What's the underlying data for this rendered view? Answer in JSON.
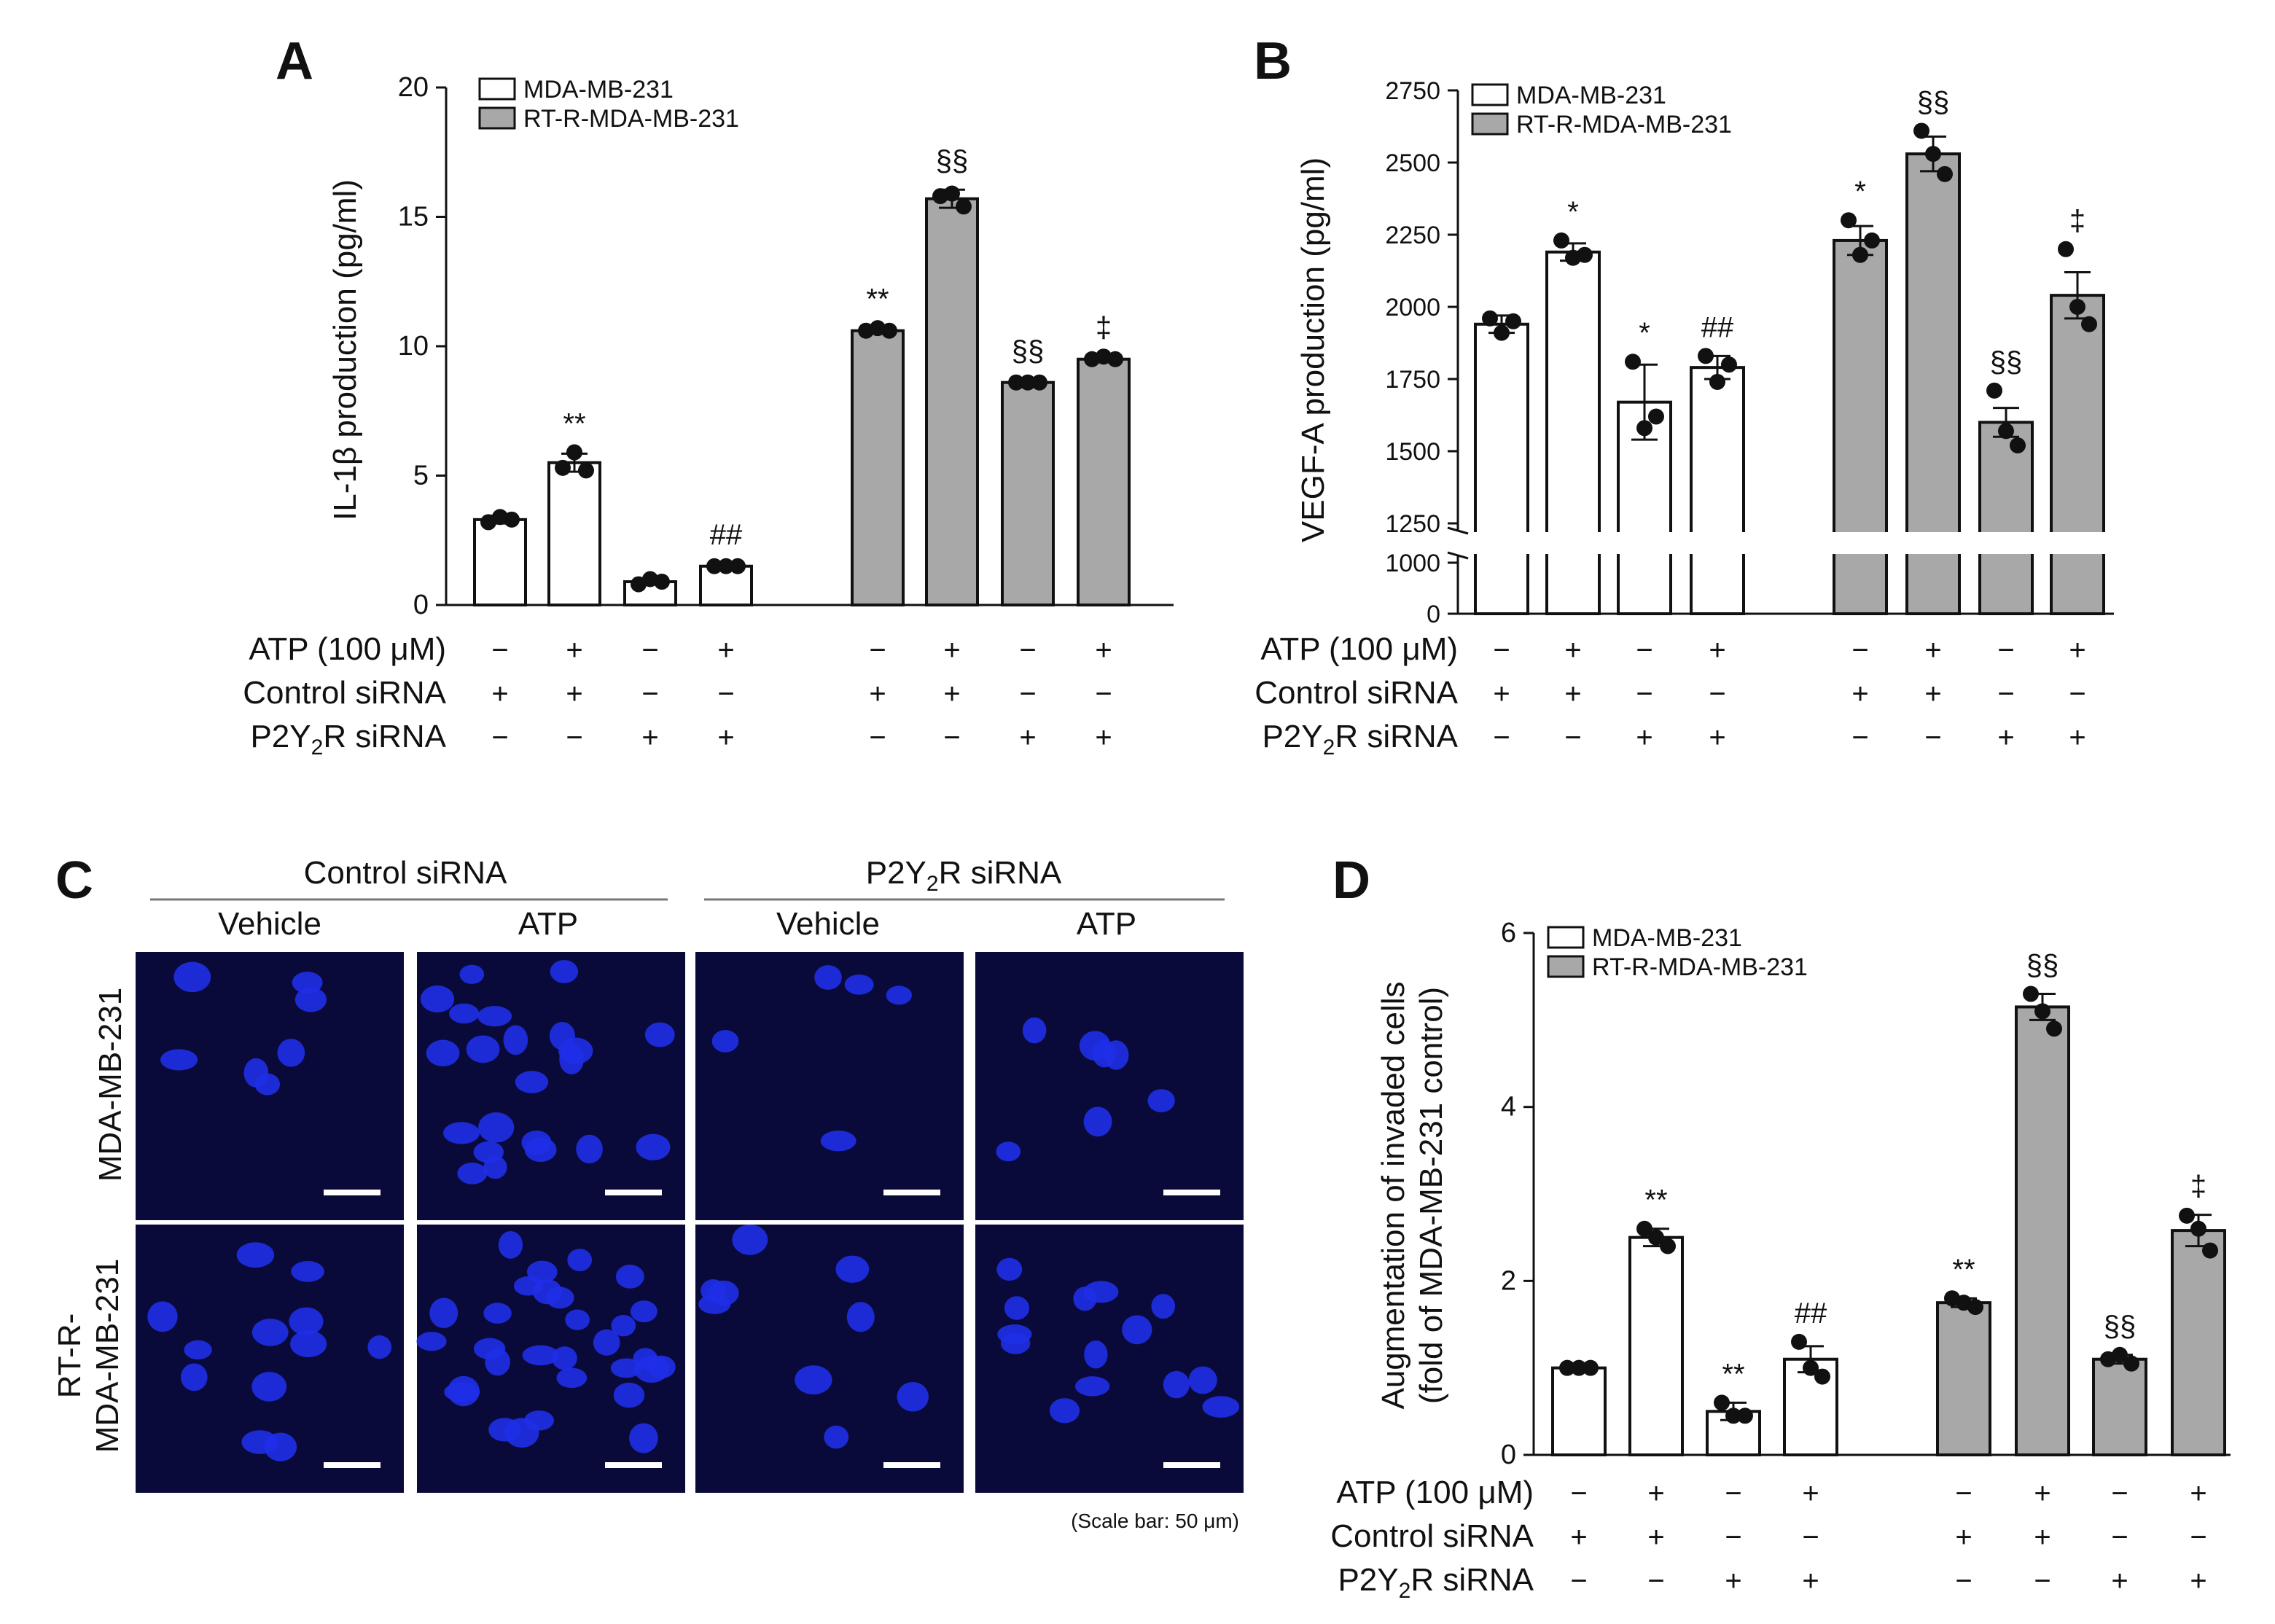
{
  "panels": {
    "a": "A",
    "b": "B",
    "c": "C",
    "d": "D"
  },
  "legend": {
    "white": "MDA-MB-231",
    "gray": "RT-R-MDA-MB-231"
  },
  "treatment_labels": {
    "atp": "ATP (100 μM)",
    "control": "Control siRNA",
    "p2y2r_main": "P2Y",
    "p2y2r_sub": "2",
    "p2y2r_tail": "R siRNA"
  },
  "treatment_matrix": {
    "atp": [
      "−",
      "+",
      "−",
      "+",
      "−",
      "+",
      "−",
      "+"
    ],
    "control": [
      "+",
      "+",
      "−",
      "−",
      "+",
      "+",
      "−",
      "−"
    ],
    "p2y2r": [
      "−",
      "−",
      "+",
      "+",
      "−",
      "−",
      "+",
      "+"
    ]
  },
  "micrograph": {
    "group_left_main": "Control siRNA",
    "group_right_main": "P2Y",
    "group_right_sub": "2",
    "group_right_tail": "R siRNA",
    "columns": [
      "Vehicle",
      "ATP",
      "Vehicle",
      "ATP"
    ],
    "row1": "MDA-MB-231",
    "row2_line1": "RT-R-",
    "row2_line2": "MDA-MB-231",
    "scale_note": "(Scale bar: 50 μm)"
  },
  "colors": {
    "white_bar": "#ffffff",
    "gray_bar": "#a8a8a8",
    "micrograph_bg": "#0a0a3a",
    "nucleus": "#1f2fe8"
  },
  "chart_data": [
    {
      "panel": "A",
      "type": "bar",
      "ylabel": "IL-1β production (pg/ml)",
      "yticks": [
        "0",
        "5",
        "10",
        "15",
        "20"
      ],
      "ylim": [
        0,
        20
      ],
      "series": [
        {
          "name": "MDA-MB-231",
          "values": [
            3.3,
            5.5,
            0.9,
            1.5
          ]
        },
        {
          "name": "RT-R-MDA-MB-231",
          "values": [
            10.6,
            15.7,
            8.6,
            9.5
          ]
        }
      ],
      "errors": [
        [
          0.15,
          0.35,
          0.1,
          0.1
        ],
        [
          0.12,
          0.35,
          0.1,
          0.12
        ]
      ],
      "points": [
        [
          [
            3.2,
            3.4,
            3.3
          ],
          [
            5.3,
            5.9,
            5.2
          ],
          [
            0.8,
            1.0,
            0.9
          ],
          [
            1.5,
            1.5,
            1.5
          ]
        ],
        [
          [
            10.6,
            10.7,
            10.6
          ],
          [
            15.8,
            15.9,
            15.4
          ],
          [
            8.6,
            8.6,
            8.6
          ],
          [
            9.5,
            9.6,
            9.5
          ]
        ]
      ],
      "annotations": [
        [
          "",
          "**",
          "",
          "##"
        ],
        [
          "**",
          "§§",
          "§§",
          "‡"
        ]
      ]
    },
    {
      "panel": "B",
      "type": "bar",
      "ylabel": "VEGF-A production (pg/ml)",
      "yticks": [
        "0",
        "1000",
        "1250",
        "1500",
        "1750",
        "2000",
        "2250",
        "2500",
        "2750"
      ],
      "ylim": [
        0,
        2750
      ],
      "axis_break": [
        1000,
        1250
      ],
      "series": [
        {
          "name": "MDA-MB-231",
          "values": [
            1940,
            2190,
            1670,
            1790
          ]
        },
        {
          "name": "RT-R-MDA-MB-231",
          "values": [
            2230,
            2530,
            1600,
            2040
          ]
        }
      ],
      "errors": [
        [
          30,
          30,
          130,
          40
        ],
        [
          50,
          60,
          50,
          80
        ]
      ],
      "points": [
        [
          [
            1960,
            1910,
            1950
          ],
          [
            2230,
            2170,
            2180
          ],
          [
            1810,
            1580,
            1620
          ],
          [
            1830,
            1740,
            1800
          ]
        ],
        [
          [
            2300,
            2180,
            2230
          ],
          [
            2610,
            2530,
            2460
          ],
          [
            1710,
            1570,
            1520
          ],
          [
            2200,
            2000,
            1940
          ]
        ]
      ],
      "annotations": [
        [
          "",
          "*",
          "*",
          "##"
        ],
        [
          "*",
          "§§",
          "§§",
          "‡"
        ]
      ]
    },
    {
      "panel": "D",
      "type": "bar",
      "ylabel_line1": "Augmentation of invaded cells",
      "ylabel_line2": "(fold of MDA-MB-231 control)",
      "yticks": [
        "0",
        "2",
        "4",
        "6"
      ],
      "ylim": [
        0,
        6
      ],
      "series": [
        {
          "name": "MDA-MB-231",
          "values": [
            1.0,
            2.5,
            0.5,
            1.1
          ]
        },
        {
          "name": "RT-R-MDA-MB-231",
          "values": [
            1.75,
            5.15,
            1.1,
            2.58
          ]
        }
      ],
      "errors": [
        [
          0.0,
          0.1,
          0.1,
          0.15
        ],
        [
          0.05,
          0.15,
          0.05,
          0.18
        ]
      ],
      "points": [
        [
          [
            1.0,
            1.0,
            1.0
          ],
          [
            2.6,
            2.5,
            2.4
          ],
          [
            0.6,
            0.45,
            0.45
          ],
          [
            1.3,
            1.0,
            0.9
          ]
        ],
        [
          [
            1.8,
            1.75,
            1.7
          ],
          [
            5.3,
            5.1,
            4.9
          ],
          [
            1.1,
            1.15,
            1.05
          ],
          [
            2.75,
            2.6,
            2.35
          ]
        ]
      ],
      "annotations": [
        [
          "",
          "**",
          "**",
          "##"
        ],
        [
          "**",
          "§§",
          "§§",
          "‡"
        ]
      ]
    }
  ]
}
